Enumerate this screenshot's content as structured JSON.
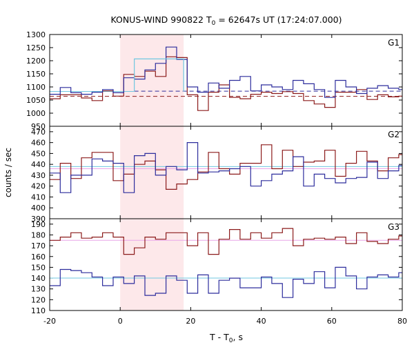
{
  "chart_data": {
    "type": "line",
    "title_main": "KONUS-WIND 990822 T",
    "title_sub": "0",
    "title_rest": " = 62647s UT (17:24:07.000)",
    "xlabel_main": "T - T",
    "xlabel_sub": "0",
    "xlabel_rest": ", s",
    "ylabel": "counts / sec",
    "xlim": [
      -20,
      80
    ],
    "x_ticks": [
      "-20",
      "0",
      "20",
      "40",
      "60",
      "80"
    ],
    "highlight": {
      "x0": 0,
      "x1": 18
    },
    "colors": {
      "red": "#8b1a1a",
      "blue": "#2c2c9c",
      "cyan": "#6fc7e0",
      "pink": "#e9a6e9",
      "shade": "#fde8ea"
    },
    "edges": [
      -20,
      -17,
      -14,
      -11,
      -8,
      -5,
      -2,
      1,
      4,
      7,
      10,
      13,
      16,
      19,
      22,
      25,
      28,
      31,
      34,
      37,
      40,
      43,
      46,
      49,
      52,
      55,
      58,
      61,
      64,
      67,
      70,
      73,
      76,
      79,
      80
    ],
    "panels": [
      {
        "name": "G1",
        "ylim": [
          950,
          1300
        ],
        "y_ticks": [
          "950",
          "1000",
          "1050",
          "1100",
          "1150",
          "1200",
          "1250",
          "1300"
        ],
        "series": [
          {
            "color": "red",
            "values": [
              1055,
              1070,
              1070,
              1058,
              1048,
              1085,
              1065,
              1148,
              1140,
              1160,
              1140,
              1215,
              1212,
              1070,
              1010,
              1080,
              1108,
              1060,
              1055,
              1072,
              1080,
              1075,
              1082,
              1075,
              1048,
              1035,
              1022,
              1080,
              1080,
              1090,
              1052,
              1070,
              1062,
              1065
            ]
          },
          {
            "color": "blue",
            "values": [
              1072,
              1098,
              1078,
              1072,
              1080,
              1090,
              1078,
              1135,
              1130,
              1165,
              1190,
              1252,
              1205,
              1100,
              1080,
              1115,
              1095,
              1125,
              1140,
              1085,
              1108,
              1100,
              1090,
              1125,
              1112,
              1090,
              1060,
              1125,
              1100,
              1075,
              1095,
              1105,
              1095,
              1090
            ]
          }
        ],
        "hlines": [
          {
            "color": "cyan",
            "y": 1083,
            "x0": -20,
            "x1": 4,
            "dash": false
          },
          {
            "color": "blue",
            "y": 1084,
            "x0": 4,
            "x1": 80,
            "dash": true
          },
          {
            "color": "red",
            "y": 1064,
            "x0": -20,
            "x1": 80,
            "dash": true
          }
        ],
        "box": {
          "color": "cyan",
          "x0": 4,
          "x1": 18,
          "y": 1207
        }
      },
      {
        "name": "G2",
        "ylim": [
          390,
          475
        ],
        "y_ticks": [
          "390",
          "400",
          "410",
          "420",
          "430",
          "440",
          "450",
          "460",
          "470"
        ],
        "series": [
          {
            "color": "red",
            "values": [
              426,
              441,
              427,
              446,
              451,
              451,
              425,
              431,
              440,
              443,
              435,
              417,
              422,
              426,
              433,
              451,
              436,
              431,
              441,
              441,
              458,
              436,
              453,
              438,
              442,
              443,
              453,
              429,
              441,
              452,
              443,
              434,
              446,
              449
            ]
          },
          {
            "color": "blue",
            "values": [
              432,
              414,
              430,
              430,
              445,
              443,
              441,
              414,
              448,
              450,
              430,
              438,
              435,
              460,
              432,
              433,
              434,
              436,
              438,
              420,
              425,
              431,
              434,
              447,
              420,
              431,
              427,
              423,
              427,
              428,
              442,
              427,
              434,
              439
            ]
          }
        ],
        "hlines": [
          {
            "color": "cyan",
            "y": 438,
            "x0": -20,
            "x1": 80,
            "dash": false
          },
          {
            "color": "pink",
            "y": 436,
            "x0": -20,
            "x1": 80,
            "dash": false
          }
        ]
      },
      {
        "name": "G3",
        "ylim": [
          110,
          195
        ],
        "y_ticks": [
          "110",
          "120",
          "130",
          "140",
          "150",
          "160",
          "170",
          "180",
          "190"
        ],
        "series": [
          {
            "color": "red",
            "values": [
              175,
              178,
              182,
              177,
              178,
              182,
              178,
              162,
              168,
              178,
              176,
              182,
              182,
              170,
              182,
              162,
              176,
              185,
              176,
              182,
              177,
              182,
              186,
              170,
              176,
              177,
              176,
              178,
              172,
              182,
              174,
              172,
              176,
              179
            ]
          },
          {
            "color": "blue",
            "values": [
              133,
              148,
              147,
              145,
              141,
              133,
              141,
              135,
              142,
              124,
              126,
              142,
              138,
              126,
              143,
              126,
              138,
              140,
              131,
              131,
              141,
              135,
              122,
              139,
              135,
              146,
              131,
              150,
              142,
              130,
              141,
              143,
              141,
              145
            ]
          }
        ],
        "hlines": [
          {
            "color": "pink",
            "y": 175,
            "x0": -20,
            "x1": 80,
            "dash": false
          },
          {
            "color": "cyan",
            "y": 140,
            "x0": -20,
            "x1": 80,
            "dash": false
          }
        ]
      }
    ]
  }
}
